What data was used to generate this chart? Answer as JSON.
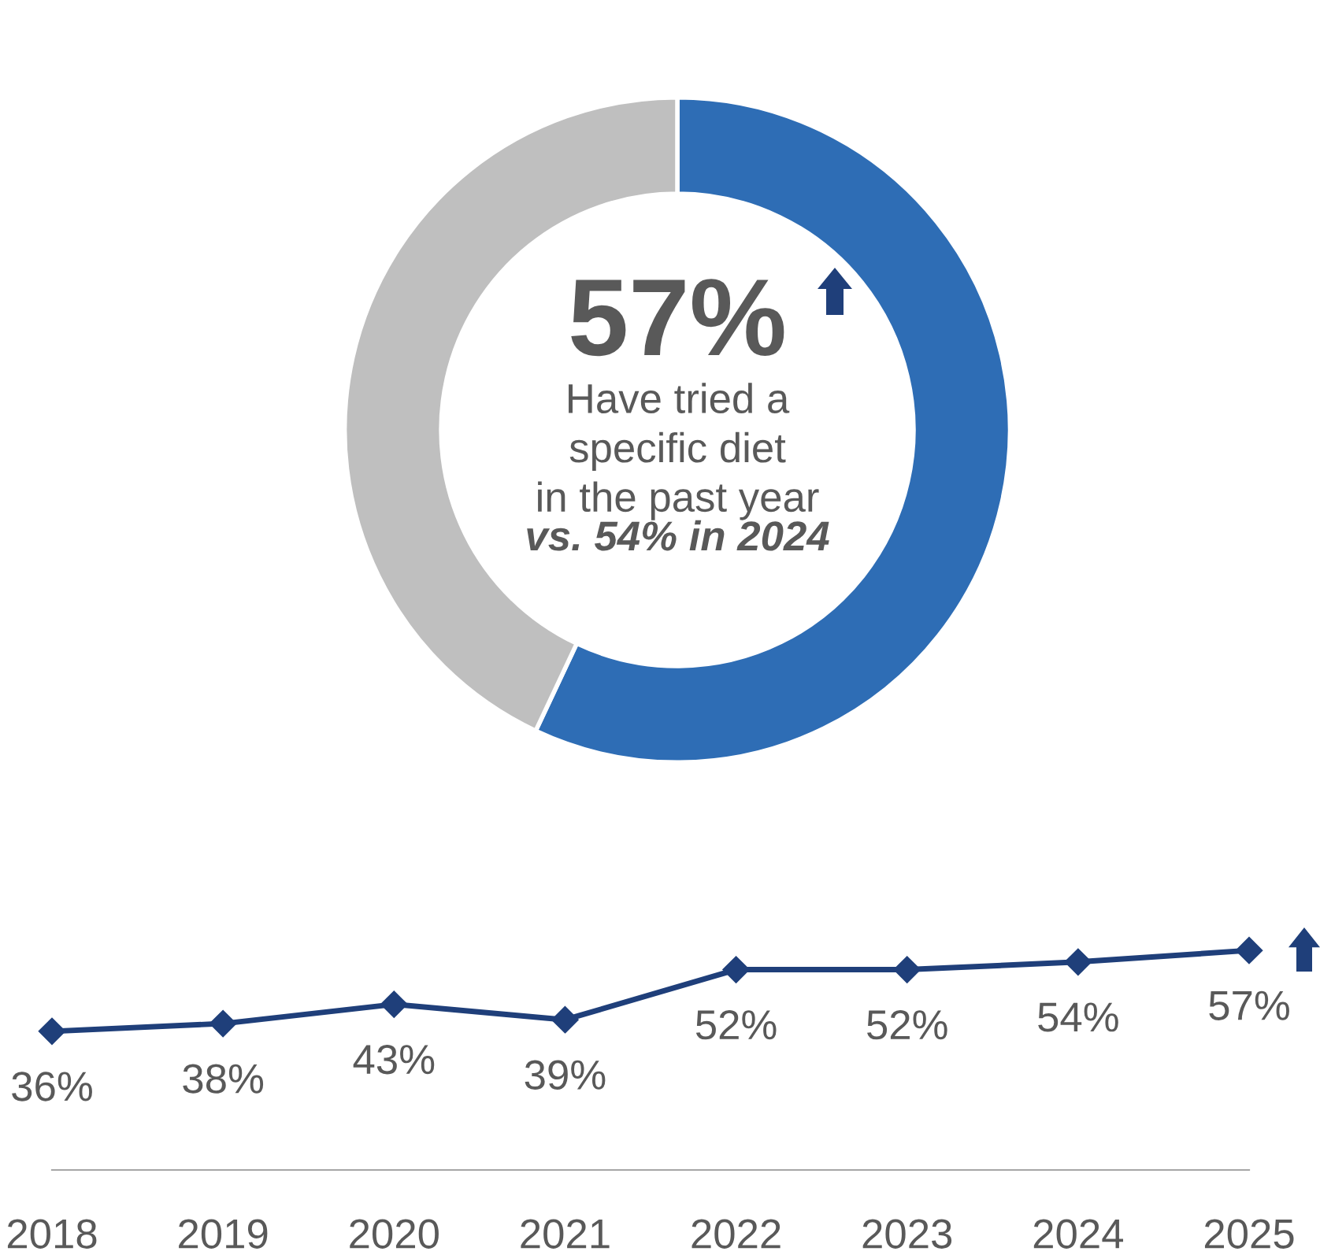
{
  "chart_data": [
    {
      "type": "donut",
      "categories": [
        null,
        null
      ],
      "values": [
        57,
        43
      ],
      "colors": [
        "#2e6db5",
        "#bfbfbf"
      ],
      "annotations": [
        "57%",
        "Have tried a\nspecific diet\nin the past year",
        "vs. 54% in 2024"
      ]
    },
    {
      "type": "line",
      "categories": [
        "2018",
        "2019",
        "2020",
        "2021",
        "2022",
        "2023",
        "2024",
        "2025"
      ],
      "series": [
        {
          "color": "#1f3f7a",
          "values": [
            36,
            38,
            43,
            39,
            52,
            52,
            54,
            57
          ],
          "value_labels": [
            "36%",
            "38%",
            "43%",
            "39%",
            "52%",
            "52%",
            "54%",
            "57%"
          ]
        }
      ],
      "marker": "diamond",
      "line_style": "solid",
      "tick_labels": "x",
      "grid": false,
      "legend": false
    }
  ]
}
